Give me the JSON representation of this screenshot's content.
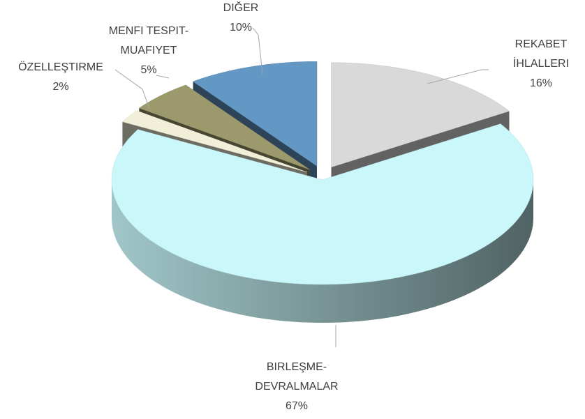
{
  "chart_data": {
    "type": "pie",
    "categories": [
      "REKABET İHLALLERI",
      "BIRLEŞME-DEVRALMALAR",
      "ÖZELLEŞTIRME",
      "MENFI TESPIT-MUAFIYET",
      "DIĞER"
    ],
    "values": [
      16,
      67,
      2,
      5,
      10
    ],
    "value_labels": [
      "16%",
      "67%",
      "2%",
      "5%",
      "10%"
    ],
    "colors": [
      "#d9d9d9",
      "#c9f7fa",
      "#f2efd9",
      "#9c9a6c",
      "#6397c4"
    ]
  }
}
